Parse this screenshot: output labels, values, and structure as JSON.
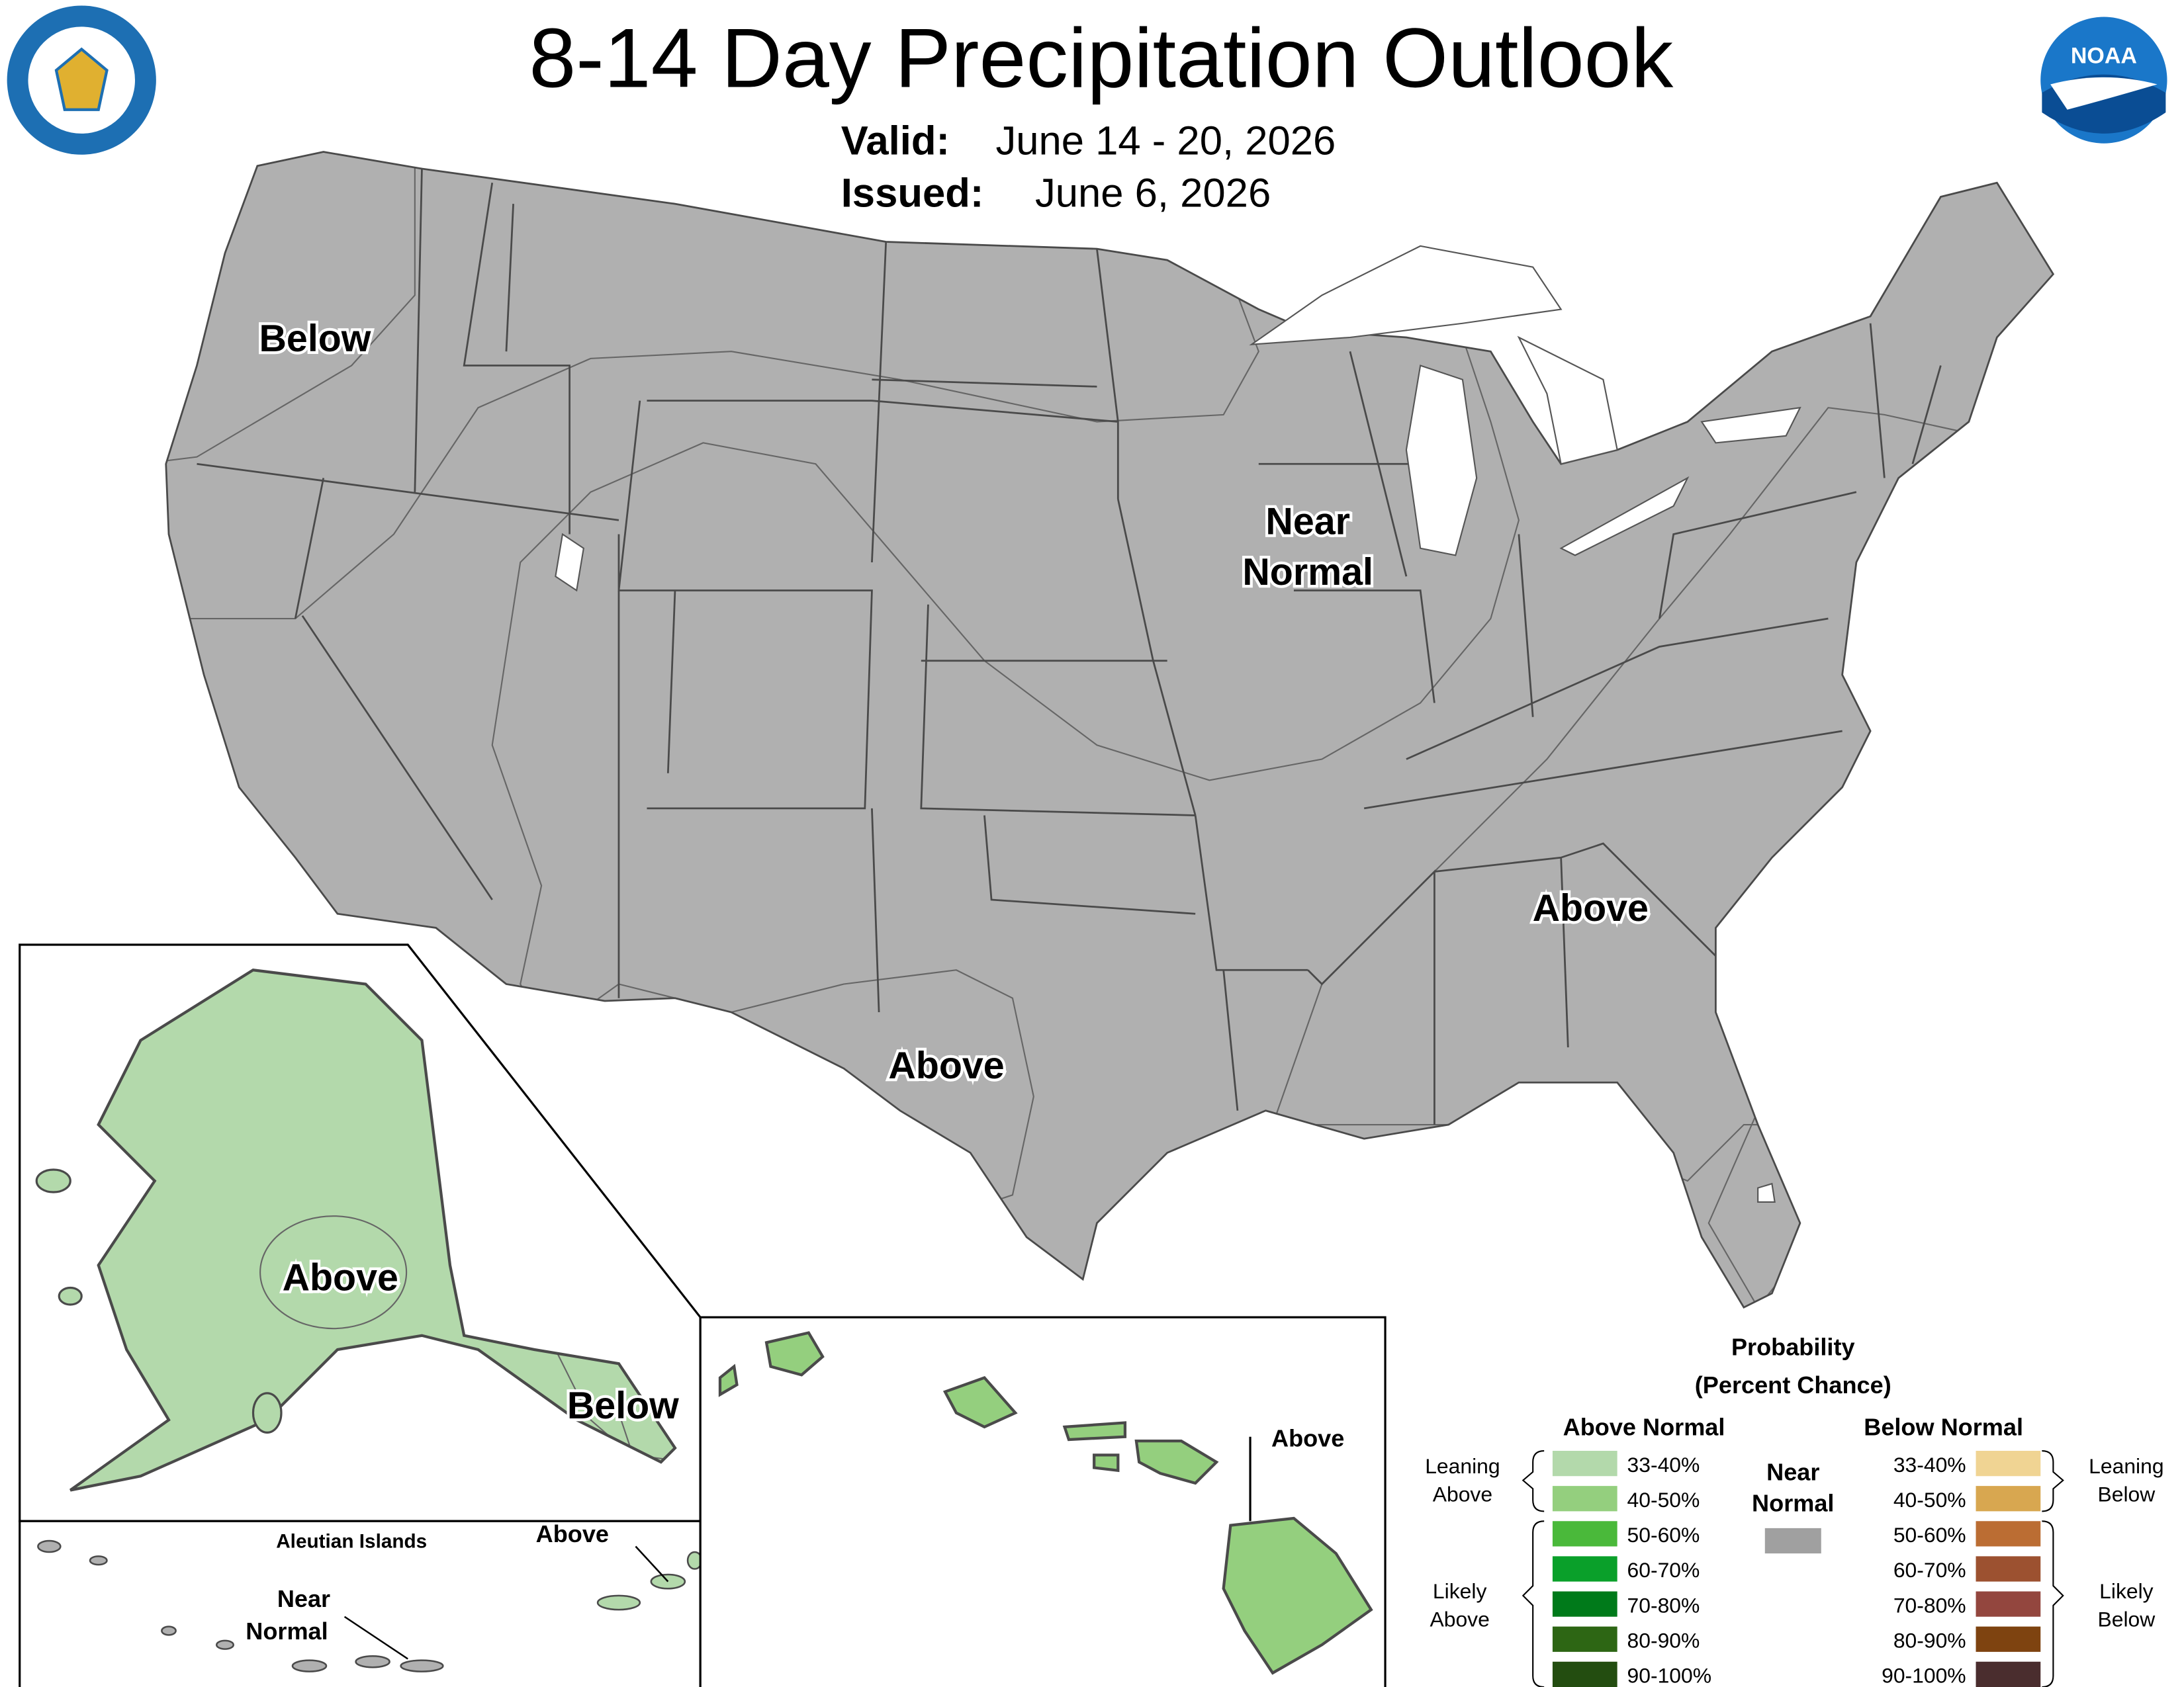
{
  "header": {
    "title": "8-14 Day Precipitation Outlook",
    "valid_label": "Valid:",
    "valid_date": "June 14 - 20, 2026",
    "issued_label": "Issued:",
    "issued_date": "June 6, 2026"
  },
  "logos": {
    "noaa": "NOAA"
  },
  "map_labels": {
    "conus_below": "Below",
    "conus_near": [
      "Near",
      "Normal"
    ],
    "southeast_above": "Above",
    "texas_above": "Above",
    "alaska_above": "Above",
    "alaska_below": "Below",
    "aleutian_title": "Aleutian Islands",
    "aleutian_above": "Above",
    "aleutian_near": [
      "Near",
      "Normal"
    ],
    "hawaii_above": "Above"
  },
  "legend": {
    "title": [
      "Probability",
      "(Percent Chance)"
    ],
    "above_heading": "Above Normal",
    "below_heading": "Below Normal",
    "near_heading": [
      "Near",
      "Normal"
    ],
    "near_color": "#a0a0a0",
    "leaning_above": [
      "Leaning",
      "Above"
    ],
    "likely_above": [
      "Likely",
      "Above"
    ],
    "leaning_below": [
      "Leaning",
      "Below"
    ],
    "likely_below": [
      "Likely",
      "Below"
    ],
    "above": [
      {
        "range": "33-40%",
        "color": "#b3d9ab"
      },
      {
        "range": "40-50%",
        "color": "#94cf7e"
      },
      {
        "range": "50-60%",
        "color": "#4ab93a"
      },
      {
        "range": "60-70%",
        "color": "#0aa02a"
      },
      {
        "range": "70-80%",
        "color": "#007a1a"
      },
      {
        "range": "80-90%",
        "color": "#2d6614"
      },
      {
        "range": "90-100%",
        "color": "#234d10"
      }
    ],
    "below": [
      {
        "range": "33-40%",
        "color": "#f0d493"
      },
      {
        "range": "40-50%",
        "color": "#d8a750"
      },
      {
        "range": "50-60%",
        "color": "#bb6d33"
      },
      {
        "range": "60-70%",
        "color": "#9c5130"
      },
      {
        "range": "70-80%",
        "color": "#93463e"
      },
      {
        "range": "80-90%",
        "color": "#7e4310"
      },
      {
        "range": "90-100%",
        "color": "#4a2d2e"
      }
    ]
  }
}
